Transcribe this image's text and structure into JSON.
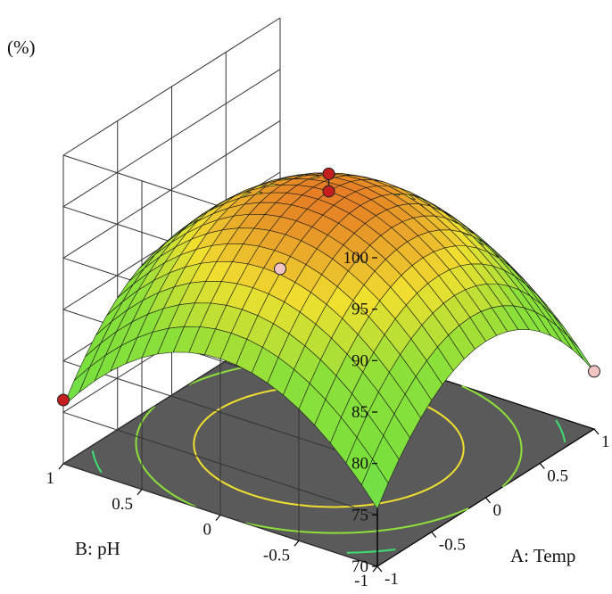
{
  "chart_data": {
    "type": "surface",
    "z_label": "(%)",
    "x_label": "A: Temp",
    "y_label": "B: pH",
    "x_ticks": [
      "-1",
      "-0.5",
      "0",
      "0.5",
      "1"
    ],
    "y_ticks": [
      "-1",
      "-0.5",
      "0",
      "0.5",
      "1"
    ],
    "z_ticks": [
      "70",
      "75",
      "80",
      "85",
      "90",
      "95",
      "100"
    ],
    "xlim": [
      -1,
      1
    ],
    "ylim": [
      -1,
      1
    ],
    "zlim": [
      70,
      100
    ],
    "surface_model": {
      "intercept": 94.8,
      "A": 0,
      "B": 0,
      "A2": -9.6,
      "B2": -9.6,
      "AB": 0
    },
    "design_points": [
      {
        "A": 0,
        "B": 0,
        "response": 96.5,
        "position": "above"
      },
      {
        "A": 0,
        "B": 0,
        "response": 94.8,
        "position": "above"
      },
      {
        "A": -1,
        "B": 1,
        "response": 76.2,
        "position": "above"
      },
      {
        "A": 1,
        "B": -1,
        "response": 75.6,
        "position": "below"
      },
      {
        "A": 1,
        "B": 1,
        "response": 75.6,
        "position": "below"
      }
    ],
    "contour_levels": [
      76,
      80,
      85,
      90
    ],
    "colors": {
      "floor": "#5a5a5a",
      "point_above": "#c41e1e",
      "point_below": "#f2c4c4",
      "surface_low": "#3de0d0",
      "surface_mid": "#8ee03a",
      "surface_high_yellow": "#f0e030",
      "surface_top": "#e05020"
    }
  }
}
